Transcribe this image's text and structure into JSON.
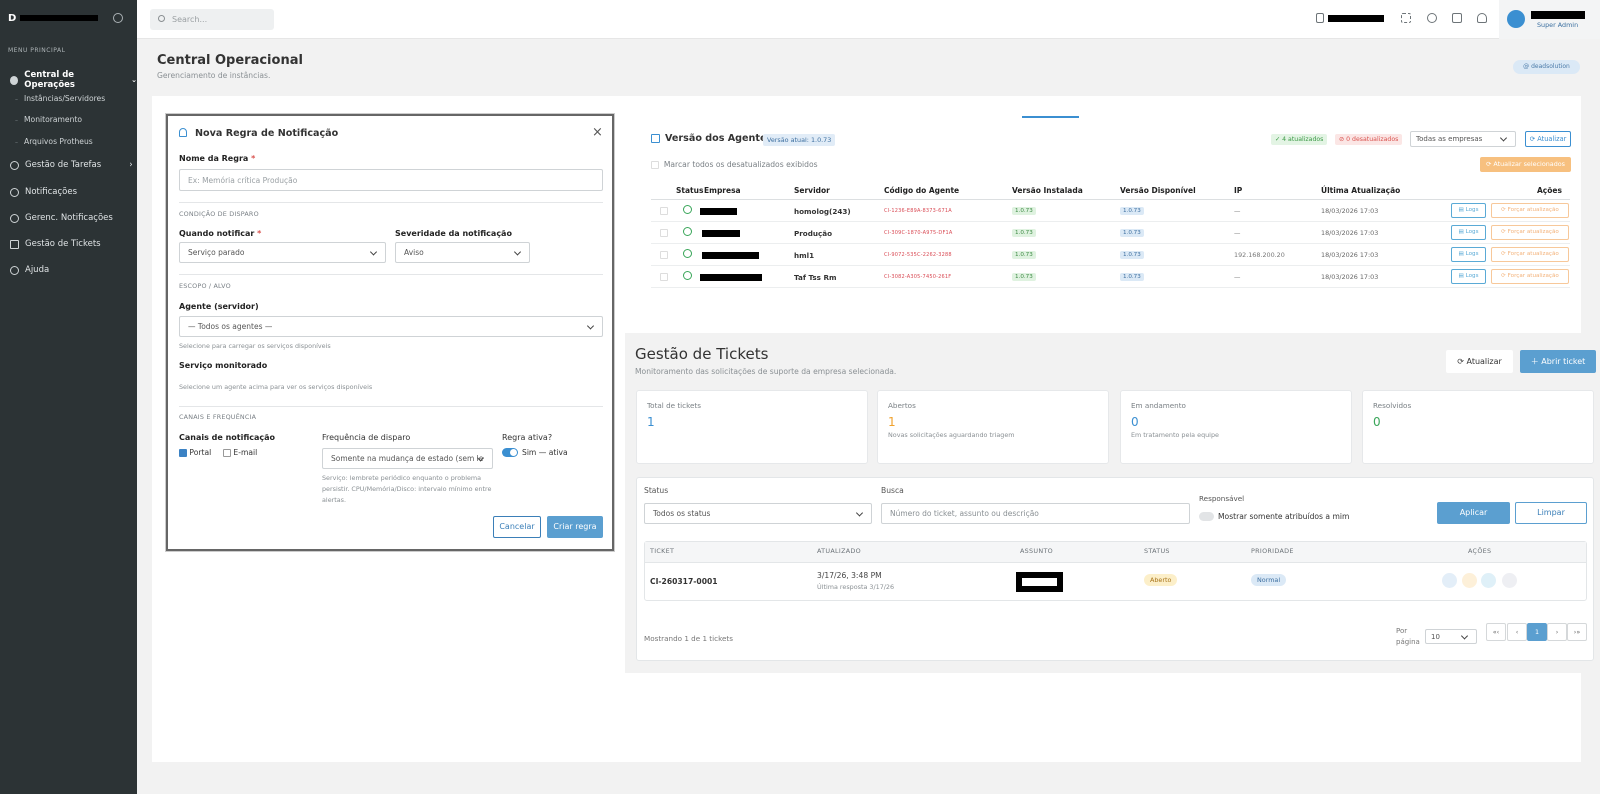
{
  "sidebar": {
    "logo_letter": "D",
    "menu_title": "MENU PRINCIPAL",
    "items": [
      {
        "label": "Central de Operações"
      },
      {
        "label": "Instâncias/Servidores"
      },
      {
        "label": "Monitoramento"
      },
      {
        "label": "Arquivos Protheus"
      },
      {
        "label": "Gestão de Tarefas"
      },
      {
        "label": "Notificações"
      },
      {
        "label": "Gerenc. Notificações"
      },
      {
        "label": "Gestão de Tickets"
      },
      {
        "label": "Ajuda"
      }
    ]
  },
  "topbar": {
    "search_placeholder": "Search...",
    "user_role": "Super Admin"
  },
  "page": {
    "title": "Central Operacional",
    "subtitle": "Gerenciamento de instâncias.",
    "tenant_chip": "deadsolution"
  },
  "modal": {
    "title": "Nova Regra de Notificação",
    "rule_name_label": "Nome da Regra",
    "rule_name_placeholder": "Ex: Memória crítica Produção",
    "section_trigger": "CONDIÇÃO DE DISPARO",
    "when_label": "Quando notificar",
    "when_value": "Serviço parado",
    "severity_label": "Severidade da notificação",
    "severity_value": "Aviso",
    "section_scope": "ESCOPO / ALVO",
    "agent_label": "Agente (servidor)",
    "agent_value": "— Todos os agentes —",
    "agent_hint": "Selecione para carregar os serviços disponíveis",
    "service_label": "Serviço monitorado",
    "service_hint": "Selecione um agente acima para ver os serviços disponíveis",
    "section_channels": "CANAIS E FREQUÊNCIA",
    "channels_label": "Canais de notificação",
    "channel_portal": "Portal",
    "channel_email": "E-mail",
    "freq_label": "Frequência de disparo",
    "freq_value": "Somente na mudança de estado (sem le",
    "freq_hint": "Serviço: lembrete periódico enquanto o problema persistir. CPU/Memória/Disco: intervalo mínimo entre alertas.",
    "active_label": "Regra ativa?",
    "active_value": "Sim — ativa",
    "cancel": "Cancelar",
    "create": "Criar regra"
  },
  "agents": {
    "title": "Versão dos Agentes",
    "current_version": "Versão atual: 1.0.73",
    "updated_badge": "4 atualizados",
    "outdated_badge": "0 desatualizados",
    "company_filter": "Todas as empresas",
    "refresh": "Atualizar",
    "mark_all": "Marcar todos os desatualizados exibidos",
    "update_selected": "Atualizar selecionados",
    "columns": [
      "Status",
      "Empresa",
      "Servidor",
      "Código do Agente",
      "Versão Instalada",
      "Versão Disponível",
      "IP",
      "Última Atualização",
      "Ações"
    ],
    "rows": [
      {
        "server": "homolog(243)",
        "code": "CI-1236-E89A-8373-671A",
        "installed": "1.0.73",
        "available": "1.0.73",
        "ip": "—",
        "updated": "18/03/2026 17:03"
      },
      {
        "server": "Produção",
        "code": "CI-309C-1870-A975-DF1A",
        "installed": "1.0.73",
        "available": "1.0.73",
        "ip": "—",
        "updated": "18/03/2026 17:03"
      },
      {
        "server": "hml1",
        "code": "CI-9072-535C-2262-3288",
        "installed": "1.0.73",
        "available": "1.0.73",
        "ip": "192.168.200.20",
        "updated": "18/03/2026 17:03"
      },
      {
        "server": "Taf Tss Rm",
        "code": "CI-3082-A305-7450-261F",
        "installed": "1.0.73",
        "available": "1.0.73",
        "ip": "—",
        "updated": "18/03/2026 17:03"
      }
    ],
    "logs": "Logs",
    "force": "Forçar atualização"
  },
  "tickets": {
    "title": "Gestão de Tickets",
    "subtitle": "Monitoramento das solicitações de suporte da empresa selecionada.",
    "refresh": "Atualizar",
    "open_ticket": "Abrir ticket",
    "stats": [
      {
        "label": "Total de tickets",
        "value": "1",
        "desc": "",
        "color": "#3b8fd1"
      },
      {
        "label": "Abertos",
        "value": "1",
        "desc": "Novas solicitações aguardando triagem",
        "color": "#f0a22e"
      },
      {
        "label": "Em andamento",
        "value": "0",
        "desc": "Em tratamento pela equipe",
        "color": "#3b8fd1"
      },
      {
        "label": "Resolvidos",
        "value": "0",
        "desc": "",
        "color": "#3aa65a"
      }
    ],
    "filter_status_label": "Status",
    "filter_status_value": "Todos os status",
    "filter_search_label": "Busca",
    "filter_search_placeholder": "Número do ticket, assunto ou descrição",
    "filter_resp_label": "Responsável",
    "filter_resp_toggle": "Mostrar somente atribuídos a mim",
    "apply": "Aplicar",
    "clear": "Limpar",
    "columns": [
      "TICKET",
      "ATUALIZADO",
      "ASSUNTO",
      "STATUS",
      "PRIORIDADE",
      "AÇÕES"
    ],
    "row": {
      "id": "CI-260317-0001",
      "updated": "3/17/26, 3:48 PM",
      "last_reply": "Última resposta 3/17/26",
      "status": "Aberto",
      "priority": "Normal"
    },
    "showing": "Mostrando 1 de 1 tickets",
    "per_page_label": "Por página",
    "per_page_value": "10",
    "pagination": [
      "«‹",
      "‹",
      "1",
      "›",
      "›»"
    ]
  }
}
